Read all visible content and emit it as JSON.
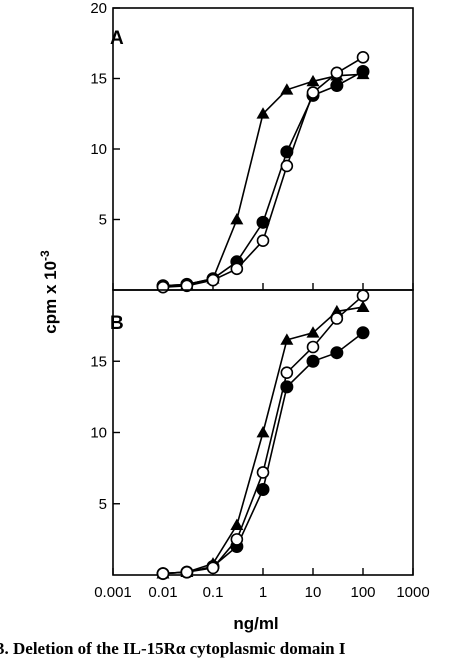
{
  "chart_data": [
    {
      "panel": "A",
      "type": "line",
      "xscale": "log",
      "xlim": [
        0.01,
        100
      ],
      "ylim": [
        0,
        20
      ],
      "yticks": [
        5,
        10,
        15,
        20
      ],
      "ytick_labels": [
        "5",
        "10",
        "15",
        "20"
      ],
      "series": [
        {
          "marker": "filled-triangle",
          "x": [
            0.01,
            0.03,
            0.1,
            0.3,
            1,
            3,
            10,
            30,
            100
          ],
          "y": [
            0.3,
            0.4,
            0.8,
            5.0,
            12.5,
            14.2,
            14.8,
            15.2,
            15.3
          ]
        },
        {
          "marker": "filled-circle",
          "x": [
            0.01,
            0.03,
            0.1,
            0.3,
            1,
            3,
            10,
            30,
            100
          ],
          "y": [
            0.3,
            0.4,
            0.8,
            2.0,
            4.8,
            9.8,
            13.8,
            14.5,
            15.5
          ]
        },
        {
          "marker": "open-circle",
          "x": [
            0.01,
            0.03,
            0.1,
            0.3,
            1,
            3,
            10,
            30,
            100
          ],
          "y": [
            0.2,
            0.3,
            0.7,
            1.5,
            3.5,
            8.8,
            14.0,
            15.4,
            16.5
          ]
        }
      ]
    },
    {
      "panel": "B",
      "type": "line",
      "xscale": "log",
      "xlim": [
        0.001,
        1000
      ],
      "xticks": [
        0.001,
        0.01,
        0.1,
        1,
        10,
        100,
        1000
      ],
      "xtick_labels": [
        "0.001",
        "0.01",
        "0.1",
        "1",
        "10",
        "100",
        "1000"
      ],
      "xlabel": "ng/ml",
      "ylim": [
        0,
        20
      ],
      "yticks": [
        5,
        10,
        15
      ],
      "ytick_labels": [
        "5",
        "10",
        "15"
      ],
      "series": [
        {
          "marker": "filled-triangle",
          "x": [
            0.01,
            0.03,
            0.1,
            0.3,
            1,
            3,
            10,
            30,
            100
          ],
          "y": [
            0.1,
            0.2,
            0.8,
            3.5,
            10.0,
            16.5,
            17.0,
            18.5,
            18.8
          ]
        },
        {
          "marker": "filled-circle",
          "x": [
            0.01,
            0.03,
            0.1,
            0.3,
            1,
            3,
            10,
            30,
            100
          ],
          "y": [
            0.1,
            0.2,
            0.6,
            2.0,
            6.0,
            13.2,
            15.0,
            15.6,
            17.0
          ]
        },
        {
          "marker": "open-circle",
          "x": [
            0.01,
            0.03,
            0.1,
            0.3,
            1,
            3,
            10,
            30,
            100
          ],
          "y": [
            0.1,
            0.2,
            0.5,
            2.5,
            7.2,
            14.2,
            16.0,
            18.0,
            19.6
          ]
        }
      ]
    }
  ],
  "ylabel": "cpm x 10",
  "ylabel_exponent": "-3",
  "caption": "3. Deletion of the IL-15Rα cytoplasmic domain I"
}
